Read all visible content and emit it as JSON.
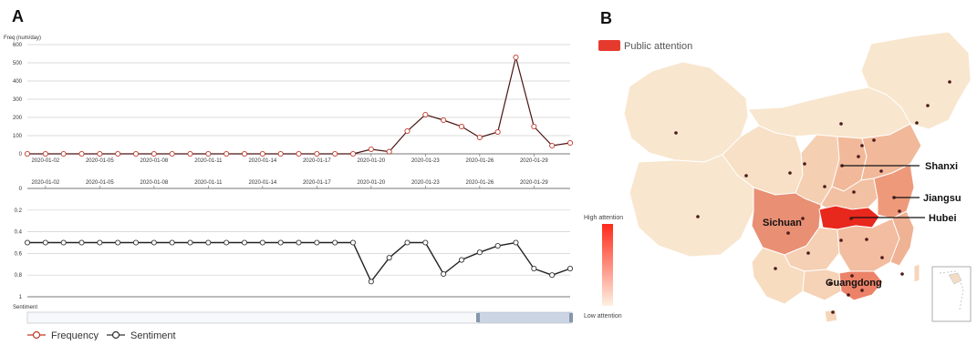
{
  "panel_a": {
    "label": "A",
    "slider_color": "#a9b8cf",
    "legend": [
      {
        "name": "Frequency",
        "color": "#c0392b"
      },
      {
        "name": "Sentiment",
        "color": "#333333"
      }
    ]
  },
  "panel_b": {
    "label": "B",
    "legend_label": "Public attention",
    "legend_color": "#e63a2e",
    "scale_high": "High attention",
    "scale_low": "Low attention",
    "gradient_high": "#ff2a1a",
    "gradient_low": "#fdf1e2",
    "regions": [
      "Shanxi",
      "Jiangsu",
      "Hubei",
      "Sichuan",
      "Guangdong"
    ]
  },
  "chart_data": [
    {
      "type": "line",
      "name": "Frequency",
      "ylabel": "Freq (num/day)",
      "ylim": [
        0,
        600
      ],
      "yticks": [
        0,
        100,
        200,
        300,
        400,
        500,
        600
      ],
      "grid": true,
      "line_color": "#4a1414",
      "marker_color": "#c0392b",
      "x_tick_labels": [
        "2020-01-02",
        "2020-01-05",
        "2020-01-08",
        "2020-01-11",
        "2020-01-14",
        "2020-01-17",
        "2020-01-20",
        "2020-01-23",
        "2020-01-26",
        "2020-01-29"
      ],
      "x": [
        "2020-01-01",
        "2020-01-02",
        "2020-01-03",
        "2020-01-04",
        "2020-01-05",
        "2020-01-06",
        "2020-01-07",
        "2020-01-08",
        "2020-01-09",
        "2020-01-10",
        "2020-01-11",
        "2020-01-12",
        "2020-01-13",
        "2020-01-14",
        "2020-01-15",
        "2020-01-16",
        "2020-01-17",
        "2020-01-18",
        "2020-01-19",
        "2020-01-20",
        "2020-01-21",
        "2020-01-22",
        "2020-01-23",
        "2020-01-24",
        "2020-01-25",
        "2020-01-26",
        "2020-01-27",
        "2020-01-28",
        "2020-01-29",
        "2020-01-30",
        "2020-01-31"
      ],
      "values": [
        0,
        0,
        0,
        0,
        0,
        0,
        0,
        0,
        0,
        0,
        0,
        0,
        0,
        0,
        0,
        0,
        0,
        0,
        0,
        25,
        12,
        125,
        215,
        185,
        150,
        90,
        120,
        530,
        150,
        45,
        60
      ]
    },
    {
      "type": "line",
      "name": "Sentiment",
      "ylabel": "Sentiment",
      "ylim": [
        0,
        1
      ],
      "yticks": [
        "0",
        "0.2",
        "0.4",
        "0.6",
        "0.8",
        "1"
      ],
      "inverted": true,
      "grid": true,
      "line_color": "#222222",
      "marker_color": "#333333",
      "x_tick_labels": [
        "2020-01-02",
        "2020-01-05",
        "2020-01-08",
        "2020-01-11",
        "2020-01-14",
        "2020-01-17",
        "2020-01-20",
        "2020-01-23",
        "2020-01-26",
        "2020-01-29"
      ],
      "x": [
        "2020-01-01",
        "2020-01-02",
        "2020-01-03",
        "2020-01-04",
        "2020-01-05",
        "2020-01-06",
        "2020-01-07",
        "2020-01-08",
        "2020-01-09",
        "2020-01-10",
        "2020-01-11",
        "2020-01-12",
        "2020-01-13",
        "2020-01-14",
        "2020-01-15",
        "2020-01-16",
        "2020-01-17",
        "2020-01-18",
        "2020-01-19",
        "2020-01-20",
        "2020-01-21",
        "2020-01-22",
        "2020-01-23",
        "2020-01-24",
        "2020-01-25",
        "2020-01-26",
        "2020-01-27",
        "2020-01-28",
        "2020-01-29",
        "2020-01-30",
        "2020-01-31"
      ],
      "values": [
        0.5,
        0.5,
        0.5,
        0.5,
        0.5,
        0.5,
        0.5,
        0.5,
        0.5,
        0.5,
        0.5,
        0.5,
        0.5,
        0.5,
        0.5,
        0.5,
        0.5,
        0.5,
        0.5,
        0.86,
        0.64,
        0.5,
        0.5,
        0.79,
        0.66,
        0.59,
        0.53,
        0.5,
        0.74,
        0.8,
        0.74
      ]
    }
  ]
}
